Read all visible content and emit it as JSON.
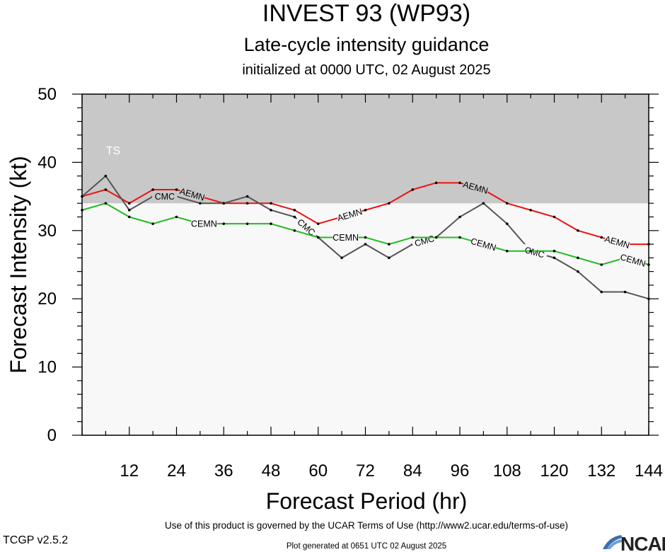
{
  "chart_data": {
    "type": "line",
    "title": "INVEST 93 (WP93)",
    "subtitle": "Late-cycle intensity guidance",
    "init_text": "initialized at 0000 UTC, 02 August 2025",
    "xlabel": "Forecast Period (hr)",
    "ylabel": "Forecast Intensity (kt)",
    "xlim": [
      0,
      144
    ],
    "ylim": [
      0,
      50
    ],
    "xticks": [
      12,
      24,
      36,
      48,
      60,
      72,
      84,
      96,
      108,
      120,
      132,
      144
    ],
    "yticks": [
      0,
      10,
      20,
      30,
      40,
      50
    ],
    "bands": [
      {
        "label": "TS",
        "from": 34,
        "to": 50,
        "color": "#c8c8c8"
      }
    ],
    "series": [
      {
        "name": "AEMN",
        "color": "#ee1111",
        "x": [
          0,
          6,
          12,
          18,
          24,
          30,
          36,
          42,
          48,
          54,
          60,
          66,
          72,
          78,
          84,
          90,
          96,
          102,
          108,
          114,
          120,
          126,
          132,
          138,
          144
        ],
        "values": [
          35,
          36,
          34,
          36,
          36,
          35,
          34,
          34,
          34,
          33,
          31,
          32,
          33,
          34,
          36,
          37,
          37,
          36,
          34,
          33,
          32,
          30,
          29,
          28,
          28
        ],
        "label_at": [
          28,
          68,
          100,
          136
        ]
      },
      {
        "name": "CMC",
        "color": "#555555",
        "x": [
          0,
          6,
          12,
          18,
          24,
          30,
          36,
          42,
          48,
          54,
          60,
          66,
          72,
          78,
          84,
          90,
          96,
          102,
          108,
          114,
          120,
          126,
          132,
          138,
          144
        ],
        "values": [
          35,
          38,
          33,
          35,
          35,
          34,
          34,
          35,
          33,
          32,
          29,
          26,
          28,
          26,
          28,
          29,
          32,
          34,
          31,
          27,
          26,
          24,
          21,
          21,
          20
        ],
        "label_at": [
          21,
          57,
          87,
          115
        ]
      },
      {
        "name": "CEMN",
        "color": "#22bb22",
        "x": [
          0,
          6,
          12,
          18,
          24,
          30,
          36,
          42,
          48,
          54,
          60,
          66,
          72,
          78,
          84,
          90,
          96,
          102,
          108,
          114,
          120,
          126,
          132,
          138,
          144
        ],
        "values": [
          33,
          34,
          32,
          31,
          32,
          31,
          31,
          31,
          31,
          30,
          29,
          29,
          29,
          28,
          29,
          29,
          29,
          28,
          27,
          27,
          27,
          26,
          25,
          26,
          25
        ],
        "label_at": [
          31,
          67,
          102,
          140
        ]
      }
    ]
  },
  "footer": {
    "terms": "Use of this product is governed by the UCAR Terms of Use (http://www2.ucar.edu/terms-of-use)",
    "generated": "Plot generated at 0651 UTC   02 August 2025",
    "version": "TCGP v2.5.2",
    "logo_text": "NCAR"
  }
}
